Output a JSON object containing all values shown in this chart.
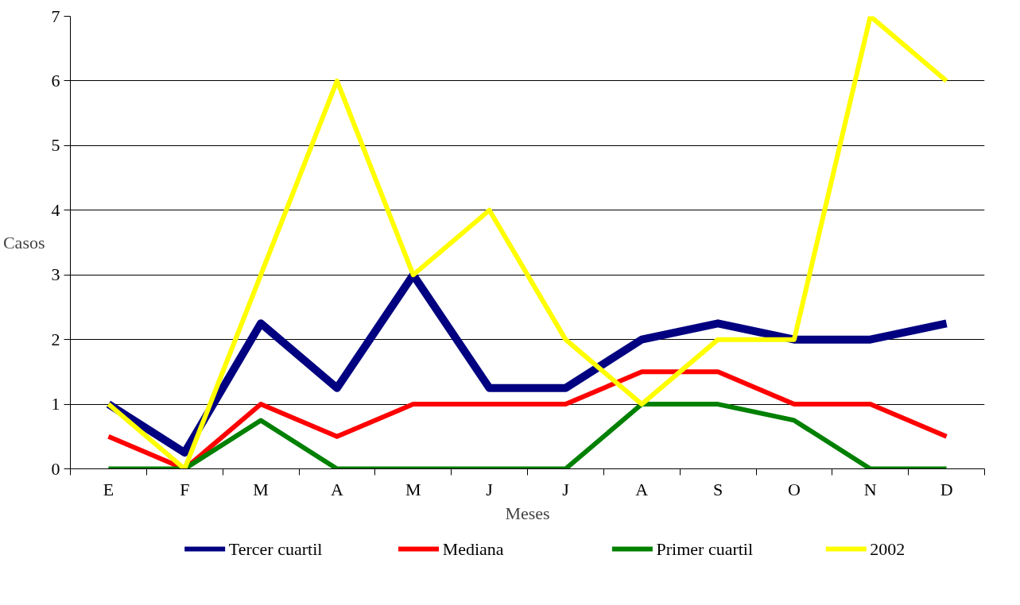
{
  "chart_data": {
    "type": "line",
    "xlabel": "Meses",
    "ylabel": "Casos",
    "categories": [
      "E",
      "F",
      "M",
      "A",
      "M",
      "J",
      "J",
      "A",
      "S",
      "O",
      "N",
      "D"
    ],
    "series": [
      {
        "name": "Tercer cuartil",
        "color": "#000080",
        "values": [
          1,
          0.25,
          2.25,
          1.25,
          3,
          1.25,
          1.25,
          2,
          2.25,
          2,
          2,
          2.25
        ]
      },
      {
        "name": "Mediana",
        "color": "#ff0000",
        "values": [
          0.5,
          0,
          1,
          0.5,
          1,
          1,
          1,
          1.5,
          1.5,
          1,
          1,
          0.5
        ]
      },
      {
        "name": "Primer cuartil",
        "color": "#008000",
        "values": [
          0,
          0,
          0.75,
          0,
          0,
          0,
          0,
          1,
          1,
          0.75,
          0,
          0
        ]
      },
      {
        "name": "2002",
        "color": "#ffff00",
        "values": [
          1,
          0,
          3,
          6,
          3,
          4,
          2,
          1,
          2,
          2,
          7,
          6
        ]
      }
    ],
    "ylim": [
      0,
      7
    ],
    "yticks": [
      0,
      1,
      2,
      3,
      4,
      5,
      6,
      7
    ],
    "grid": "y",
    "legend": "bottom",
    "marker": "none",
    "line_style": "solid"
  }
}
